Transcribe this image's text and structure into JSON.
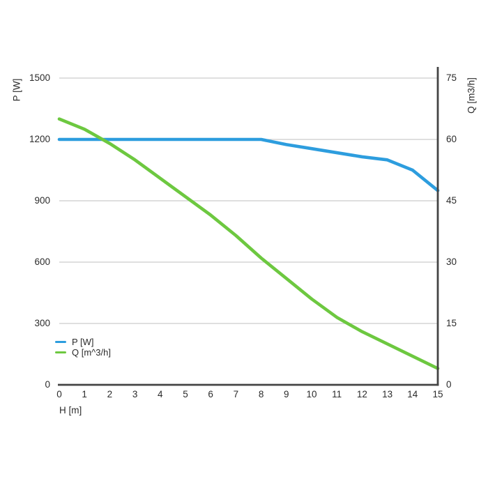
{
  "colors": {
    "background": "#ffffff",
    "grid": "#cccccc",
    "axis": "#444444",
    "text": "#2b2b2b",
    "p_line": "#2d9dde",
    "q_line": "#6dc840"
  },
  "legend": {
    "items": [
      {
        "label": "P [W]",
        "color": "#2d9dde"
      },
      {
        "label": "Q [m^3/h]",
        "color": "#6dc840"
      }
    ]
  },
  "chart_data": {
    "type": "line",
    "title": "",
    "xlabel": "H [m]",
    "x": [
      0,
      1,
      2,
      3,
      4,
      5,
      6,
      7,
      8,
      9,
      10,
      11,
      12,
      13,
      14,
      15
    ],
    "x_range": [
      0,
      15
    ],
    "x_ticks": [
      0,
      1,
      2,
      3,
      4,
      5,
      6,
      7,
      8,
      9,
      10,
      11,
      12,
      13,
      14,
      15
    ],
    "grid": "horizontal-only",
    "legend_position": "inside-bottom-left",
    "left_axis": {
      "label": "P [W]",
      "range": [
        0,
        1500
      ],
      "ticks": [
        0,
        300,
        600,
        900,
        1200,
        1500
      ]
    },
    "right_axis": {
      "label": "Q [m3/h]",
      "range": [
        0,
        75
      ],
      "ticks": [
        0,
        15,
        30,
        45,
        60,
        75
      ]
    },
    "series": [
      {
        "name": "P [W]",
        "axis": "left",
        "color": "#2d9dde",
        "values": [
          1200,
          1200,
          1200,
          1200,
          1200,
          1200,
          1200,
          1200,
          1200,
          1175,
          1155,
          1135,
          1115,
          1100,
          1050,
          950
        ]
      },
      {
        "name": "Q [m^3/h]",
        "axis": "right",
        "color": "#6dc840",
        "values": [
          65,
          62.5,
          59,
          55,
          50.5,
          46,
          41.5,
          36.5,
          31,
          26,
          21,
          16.5,
          13,
          10,
          7,
          4
        ]
      }
    ]
  }
}
